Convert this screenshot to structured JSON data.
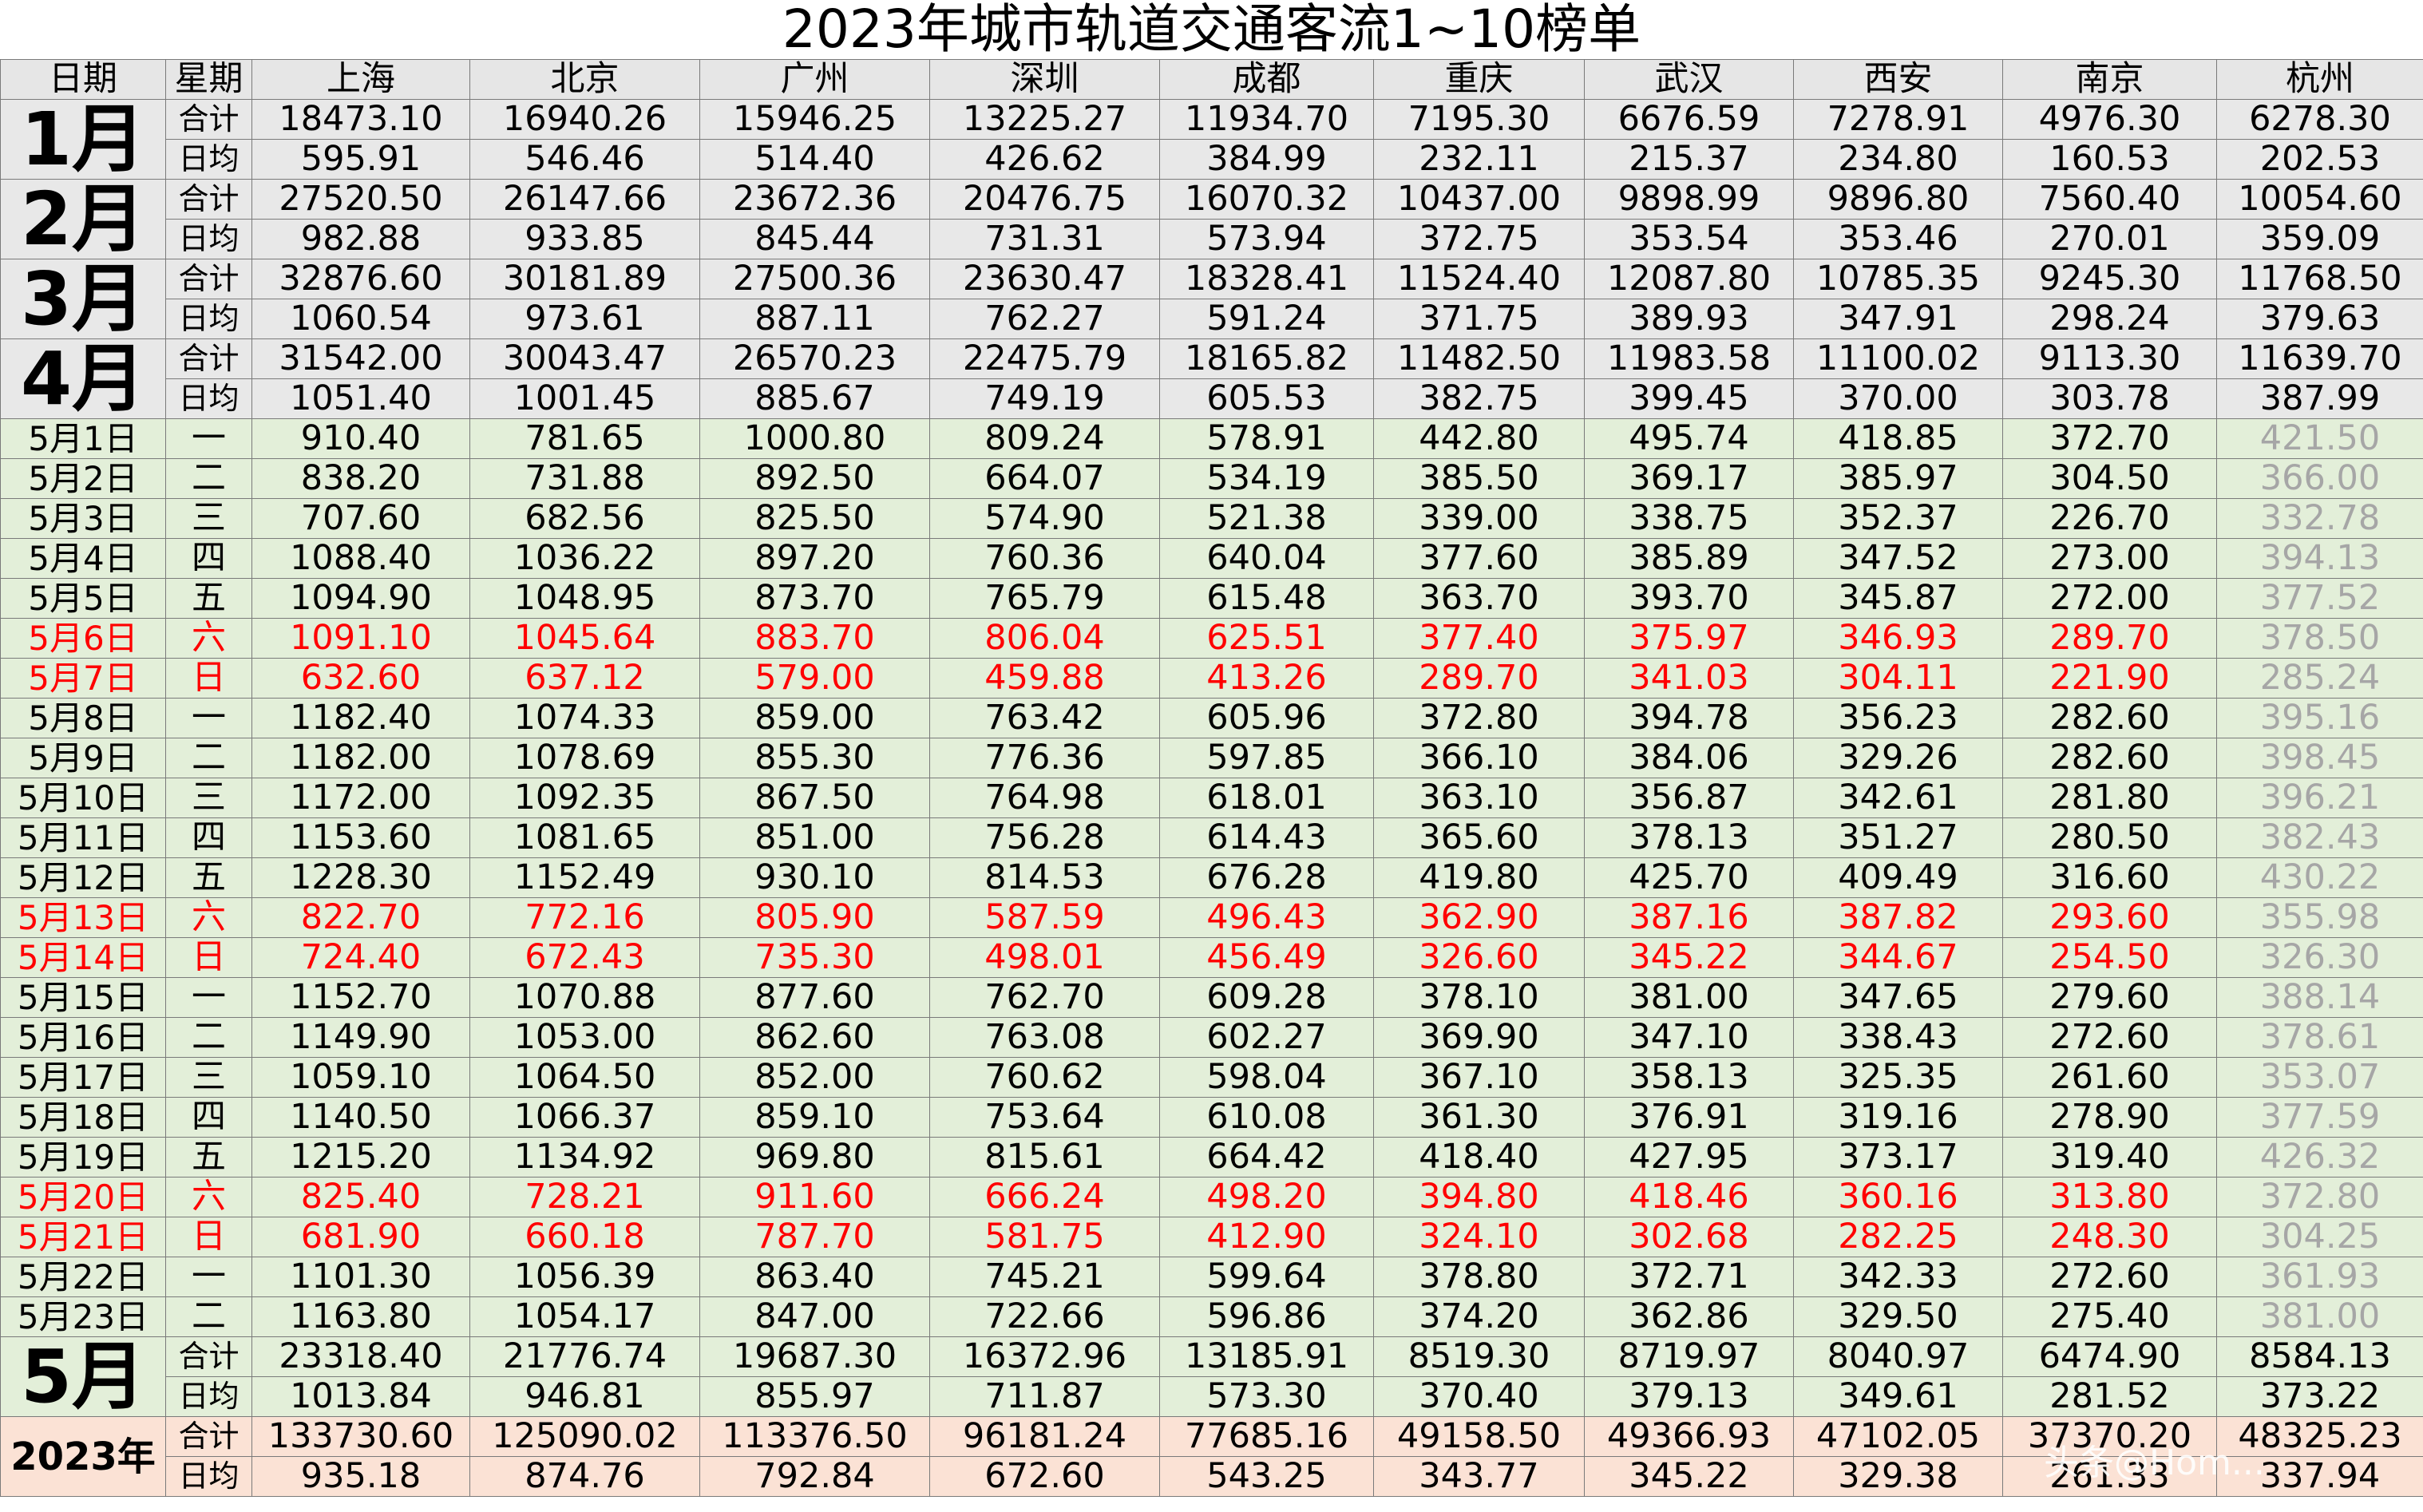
{
  "title": "2023年城市轨道交通客流1~10榜单",
  "headers": [
    "日期",
    "星期",
    "上海",
    "北京",
    "广州",
    "深圳",
    "成都",
    "重庆",
    "武汉",
    "西安",
    "南京",
    "杭州"
  ],
  "labels": {
    "total": "合计",
    "avg": "日均"
  },
  "months": [
    {
      "label": "1月",
      "total": [
        "18473.10",
        "16940.26",
        "15946.25",
        "13225.27",
        "11934.70",
        "7195.30",
        "6676.59",
        "7278.91",
        "4976.30",
        "6278.30"
      ],
      "avg": [
        "595.91",
        "546.46",
        "514.40",
        "426.62",
        "384.99",
        "232.11",
        "215.37",
        "234.80",
        "160.53",
        "202.53"
      ]
    },
    {
      "label": "2月",
      "total": [
        "27520.50",
        "26147.66",
        "23672.36",
        "20476.75",
        "16070.32",
        "10437.00",
        "9898.99",
        "9896.80",
        "7560.40",
        "10054.60"
      ],
      "avg": [
        "982.88",
        "933.85",
        "845.44",
        "731.31",
        "573.94",
        "372.75",
        "353.54",
        "353.46",
        "270.01",
        "359.09"
      ]
    },
    {
      "label": "3月",
      "total": [
        "32876.60",
        "30181.89",
        "27500.36",
        "23630.47",
        "18328.41",
        "11524.40",
        "12087.80",
        "10785.35",
        "9245.30",
        "11768.50"
      ],
      "avg": [
        "1060.54",
        "973.61",
        "887.11",
        "762.27",
        "591.24",
        "371.75",
        "389.93",
        "347.91",
        "298.24",
        "379.63"
      ]
    },
    {
      "label": "4月",
      "total": [
        "31542.00",
        "30043.47",
        "26570.23",
        "22475.79",
        "18165.82",
        "11482.50",
        "11983.58",
        "11100.02",
        "9113.30",
        "11639.70"
      ],
      "avg": [
        "1051.40",
        "1001.45",
        "885.67",
        "749.19",
        "605.53",
        "382.75",
        "399.45",
        "370.00",
        "303.78",
        "387.99"
      ]
    }
  ],
  "days": [
    {
      "date": "5月1日",
      "weekday": "一",
      "weekend": false,
      "values": [
        "910.40",
        "781.65",
        "1000.80",
        "809.24",
        "578.91",
        "442.80",
        "495.74",
        "418.85",
        "372.70",
        "421.50"
      ]
    },
    {
      "date": "5月2日",
      "weekday": "二",
      "weekend": false,
      "values": [
        "838.20",
        "731.88",
        "892.50",
        "664.07",
        "534.19",
        "385.50",
        "369.17",
        "385.97",
        "304.50",
        "366.00"
      ]
    },
    {
      "date": "5月3日",
      "weekday": "三",
      "weekend": false,
      "values": [
        "707.60",
        "682.56",
        "825.50",
        "574.90",
        "521.38",
        "339.00",
        "338.75",
        "352.37",
        "226.70",
        "332.78"
      ]
    },
    {
      "date": "5月4日",
      "weekday": "四",
      "weekend": false,
      "values": [
        "1088.40",
        "1036.22",
        "897.20",
        "760.36",
        "640.04",
        "377.60",
        "385.89",
        "347.52",
        "273.00",
        "394.13"
      ]
    },
    {
      "date": "5月5日",
      "weekday": "五",
      "weekend": false,
      "values": [
        "1094.90",
        "1048.95",
        "873.70",
        "765.79",
        "615.48",
        "363.70",
        "393.70",
        "345.87",
        "272.00",
        "377.52"
      ]
    },
    {
      "date": "5月6日",
      "weekday": "六",
      "weekend": true,
      "values": [
        "1091.10",
        "1045.64",
        "883.70",
        "806.04",
        "625.51",
        "377.40",
        "375.97",
        "346.93",
        "289.70",
        "378.50"
      ]
    },
    {
      "date": "5月7日",
      "weekday": "日",
      "weekend": true,
      "values": [
        "632.60",
        "637.12",
        "579.00",
        "459.88",
        "413.26",
        "289.70",
        "341.03",
        "304.11",
        "221.90",
        "285.24"
      ]
    },
    {
      "date": "5月8日",
      "weekday": "一",
      "weekend": false,
      "values": [
        "1182.40",
        "1074.33",
        "859.00",
        "763.42",
        "605.96",
        "372.80",
        "394.78",
        "356.23",
        "282.60",
        "395.16"
      ]
    },
    {
      "date": "5月9日",
      "weekday": "二",
      "weekend": false,
      "values": [
        "1182.00",
        "1078.69",
        "855.30",
        "776.36",
        "597.85",
        "366.10",
        "384.06",
        "329.26",
        "282.60",
        "398.45"
      ]
    },
    {
      "date": "5月10日",
      "weekday": "三",
      "weekend": false,
      "values": [
        "1172.00",
        "1092.35",
        "867.50",
        "764.98",
        "618.01",
        "363.10",
        "356.87",
        "342.61",
        "281.80",
        "396.21"
      ]
    },
    {
      "date": "5月11日",
      "weekday": "四",
      "weekend": false,
      "values": [
        "1153.60",
        "1081.65",
        "851.00",
        "756.28",
        "614.43",
        "365.60",
        "378.13",
        "351.27",
        "280.50",
        "382.43"
      ]
    },
    {
      "date": "5月12日",
      "weekday": "五",
      "weekend": false,
      "values": [
        "1228.30",
        "1152.49",
        "930.10",
        "814.53",
        "676.28",
        "419.80",
        "425.70",
        "409.49",
        "316.60",
        "430.22"
      ]
    },
    {
      "date": "5月13日",
      "weekday": "六",
      "weekend": true,
      "values": [
        "822.70",
        "772.16",
        "805.90",
        "587.59",
        "496.43",
        "362.90",
        "387.16",
        "387.82",
        "293.60",
        "355.98"
      ]
    },
    {
      "date": "5月14日",
      "weekday": "日",
      "weekend": true,
      "values": [
        "724.40",
        "672.43",
        "735.30",
        "498.01",
        "456.49",
        "326.60",
        "345.22",
        "344.67",
        "254.50",
        "326.30"
      ]
    },
    {
      "date": "5月15日",
      "weekday": "一",
      "weekend": false,
      "values": [
        "1152.70",
        "1070.88",
        "877.60",
        "762.70",
        "609.28",
        "378.10",
        "381.00",
        "347.65",
        "279.60",
        "388.14"
      ]
    },
    {
      "date": "5月16日",
      "weekday": "二",
      "weekend": false,
      "values": [
        "1149.90",
        "1053.00",
        "862.60",
        "763.08",
        "602.27",
        "369.90",
        "347.10",
        "338.43",
        "272.60",
        "378.61"
      ]
    },
    {
      "date": "5月17日",
      "weekday": "三",
      "weekend": false,
      "values": [
        "1059.10",
        "1064.50",
        "852.00",
        "760.62",
        "598.04",
        "367.10",
        "358.13",
        "325.35",
        "261.60",
        "353.07"
      ]
    },
    {
      "date": "5月18日",
      "weekday": "四",
      "weekend": false,
      "values": [
        "1140.50",
        "1066.37",
        "859.10",
        "753.64",
        "610.08",
        "361.30",
        "376.91",
        "319.16",
        "278.90",
        "377.59"
      ]
    },
    {
      "date": "5月19日",
      "weekday": "五",
      "weekend": false,
      "values": [
        "1215.20",
        "1134.92",
        "969.80",
        "815.61",
        "664.42",
        "418.40",
        "427.95",
        "373.17",
        "319.40",
        "426.32"
      ]
    },
    {
      "date": "5月20日",
      "weekday": "六",
      "weekend": true,
      "values": [
        "825.40",
        "728.21",
        "911.60",
        "666.24",
        "498.20",
        "394.80",
        "418.46",
        "360.16",
        "313.80",
        "372.80"
      ]
    },
    {
      "date": "5月21日",
      "weekday": "日",
      "weekend": true,
      "values": [
        "681.90",
        "660.18",
        "787.70",
        "581.75",
        "412.90",
        "324.10",
        "302.68",
        "282.25",
        "248.30",
        "304.25"
      ]
    },
    {
      "date": "5月22日",
      "weekday": "一",
      "weekend": false,
      "values": [
        "1101.30",
        "1056.39",
        "863.40",
        "745.21",
        "599.64",
        "378.80",
        "372.71",
        "342.33",
        "272.60",
        "361.93"
      ]
    },
    {
      "date": "5月23日",
      "weekday": "二",
      "weekend": false,
      "values": [
        "1163.80",
        "1054.17",
        "847.00",
        "722.66",
        "596.86",
        "374.20",
        "362.86",
        "329.50",
        "275.40",
        "381.00"
      ]
    }
  ],
  "may": {
    "label": "5月",
    "total": [
      "23318.40",
      "21776.74",
      "19687.30",
      "16372.96",
      "13185.91",
      "8519.30",
      "8719.97",
      "8040.97",
      "6474.90",
      "8584.13"
    ],
    "avg": [
      "1013.84",
      "946.81",
      "855.97",
      "711.87",
      "573.30",
      "370.40",
      "379.13",
      "349.61",
      "281.52",
      "373.22"
    ]
  },
  "year": {
    "label": "2023年",
    "total": [
      "133730.60",
      "125090.02",
      "113376.50",
      "96181.24",
      "77685.16",
      "49158.50",
      "49366.93",
      "47102.05",
      "37370.20",
      "48325.23"
    ],
    "avg": [
      "935.18",
      "874.76",
      "792.84",
      "672.60",
      "543.25",
      "343.77",
      "345.22",
      "329.38",
      "261.33",
      "337.94"
    ]
  },
  "watermark": "头条@Hom..."
}
